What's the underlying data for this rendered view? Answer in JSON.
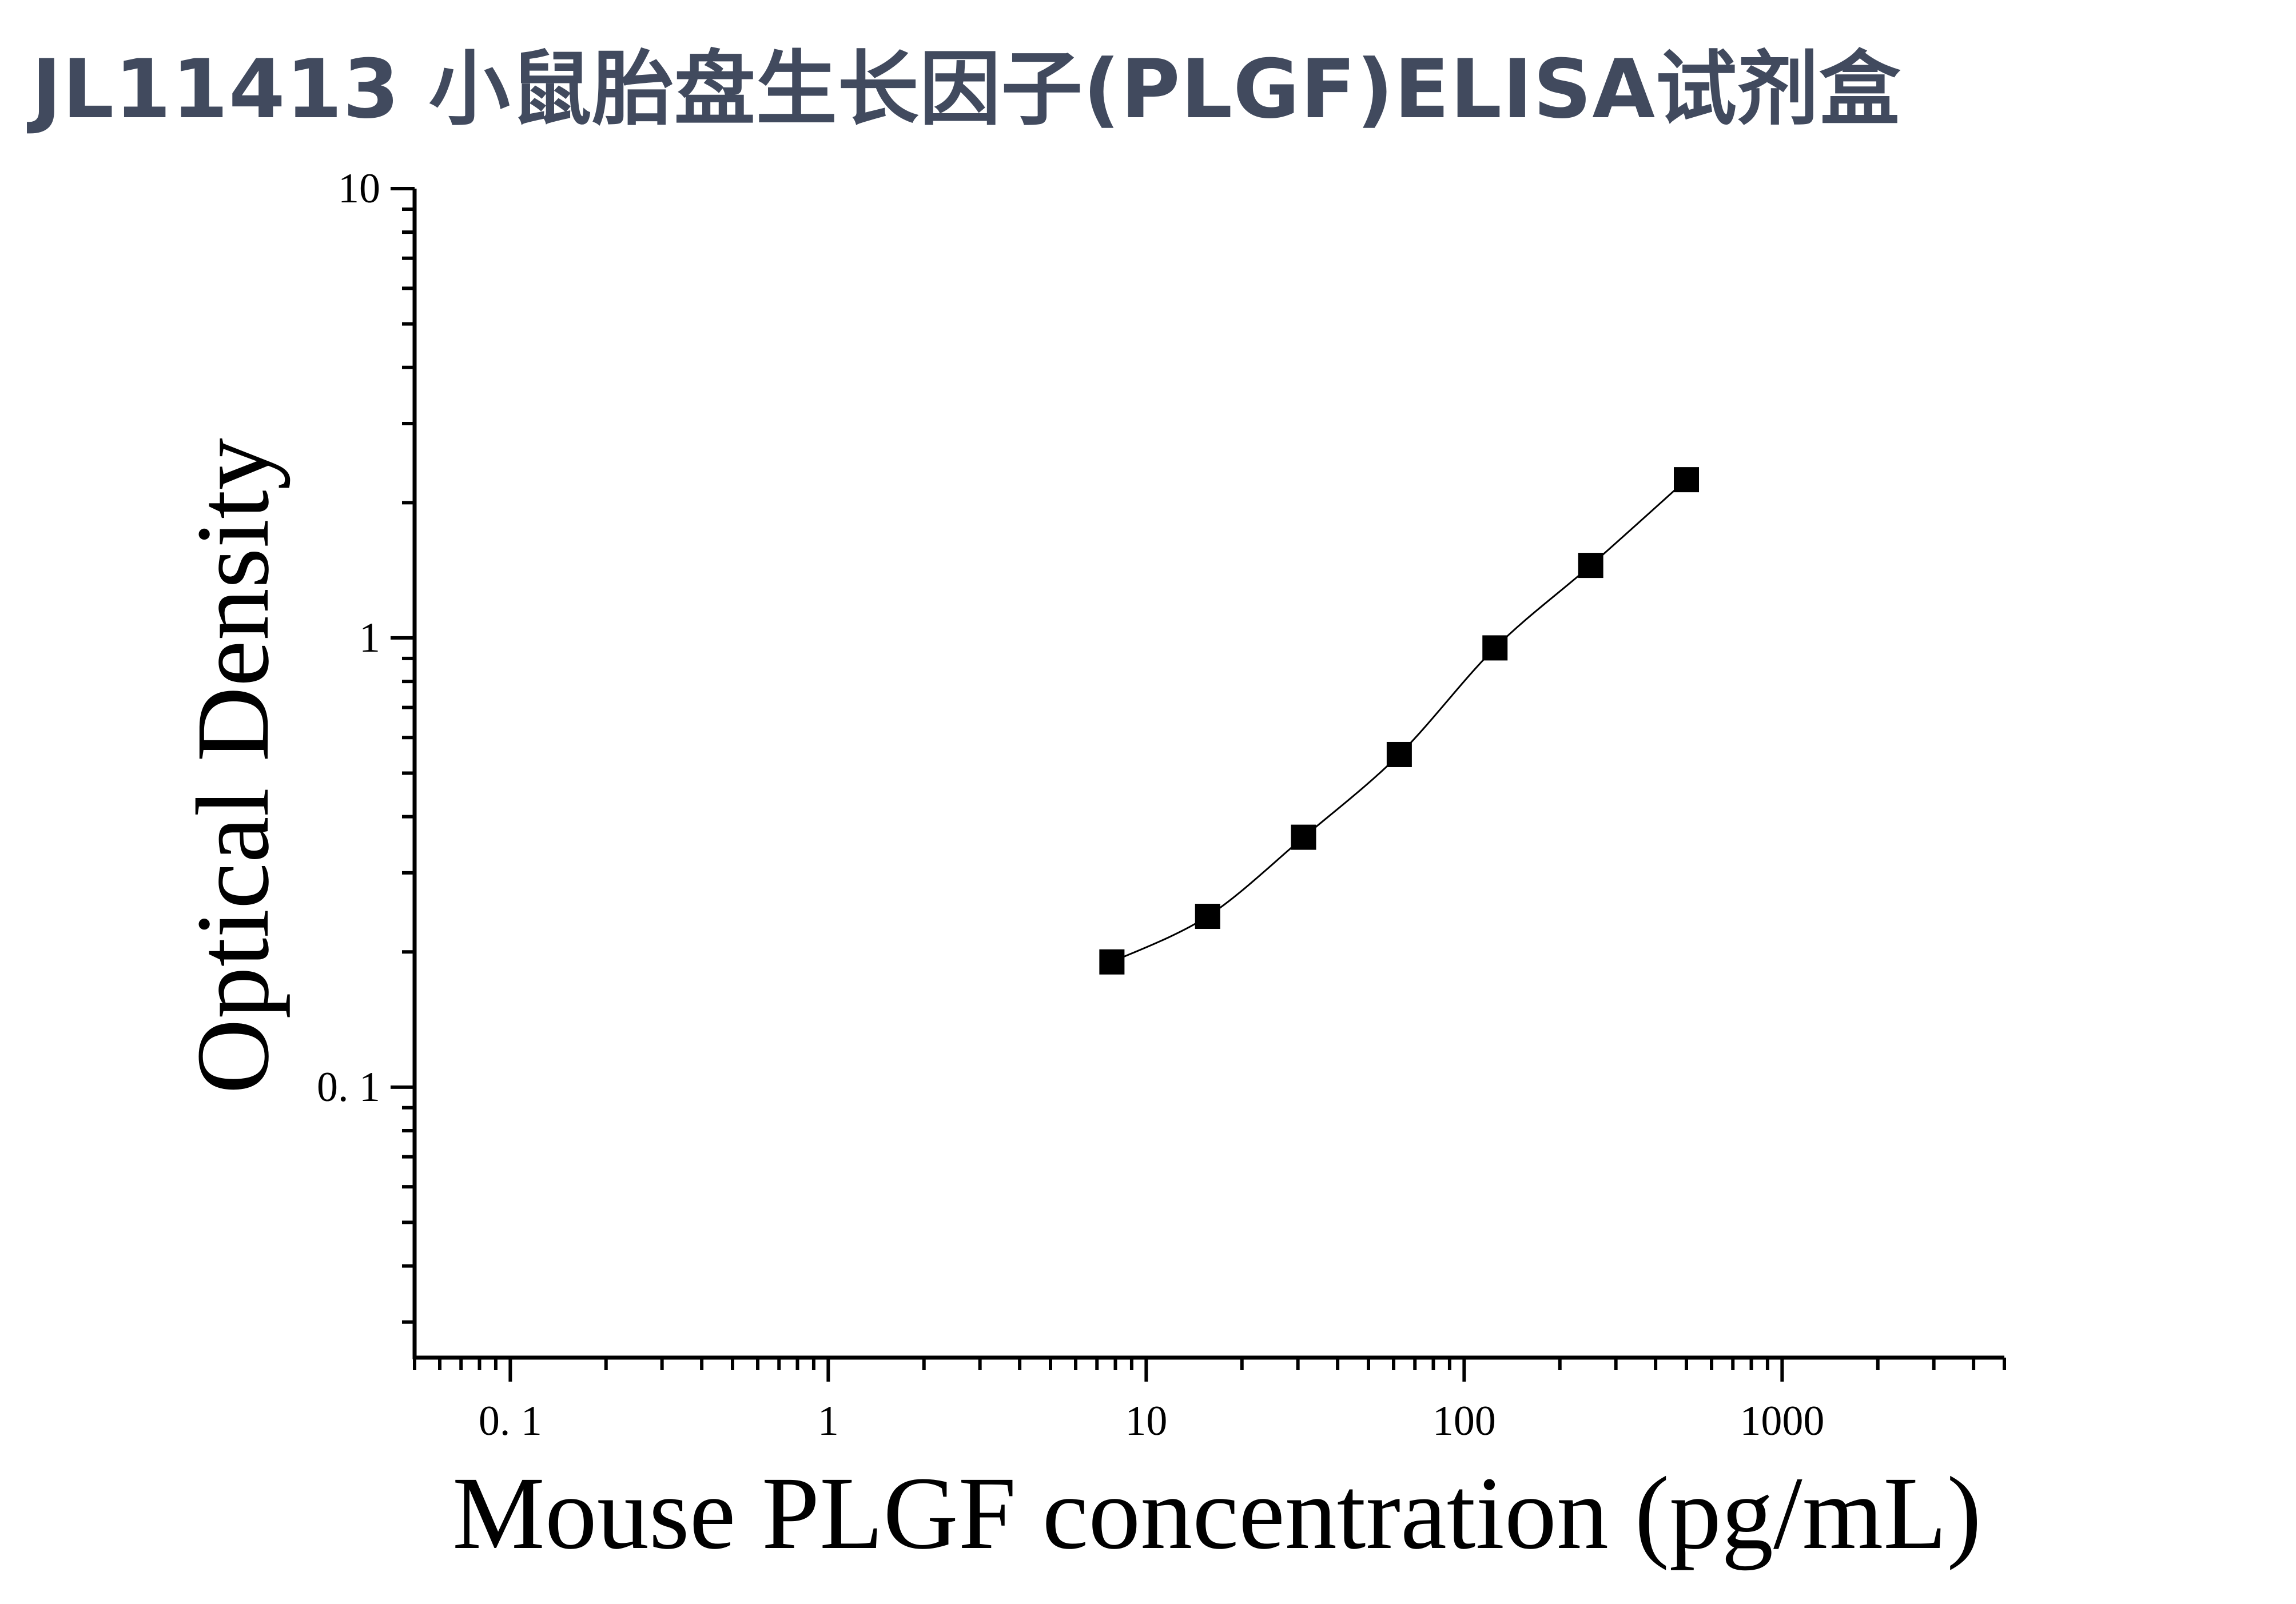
{
  "title": "JL11413 小鼠胎盘生长因子(PLGF)ELISA试剂盒",
  "chart_data": {
    "type": "scatter",
    "xlabel": "Mouse PLGF concentration (pg/mL)",
    "ylabel": "Optical Density",
    "xscale": "log",
    "yscale": "log",
    "xlim": [
      0.05,
      5000
    ],
    "ylim": [
      0.025,
      10
    ],
    "x_ticks": [
      0.1,
      1,
      10,
      100,
      1000
    ],
    "x_tick_labels": [
      "0. 1",
      "1",
      "10",
      "100",
      "1000"
    ],
    "y_ticks": [
      0.1,
      1,
      10
    ],
    "y_tick_labels": [
      "0. 1",
      "1",
      "10"
    ],
    "grid": false,
    "fit_line": true,
    "series": [
      {
        "marker": "square",
        "color": "#000000",
        "points": [
          {
            "x": 7.8,
            "y": 0.19
          },
          {
            "x": 15.6,
            "y": 0.24
          },
          {
            "x": 31.25,
            "y": 0.36
          },
          {
            "x": 62.5,
            "y": 0.55
          },
          {
            "x": 125,
            "y": 0.95
          },
          {
            "x": 250,
            "y": 1.45
          },
          {
            "x": 500,
            "y": 2.25
          }
        ]
      }
    ]
  }
}
